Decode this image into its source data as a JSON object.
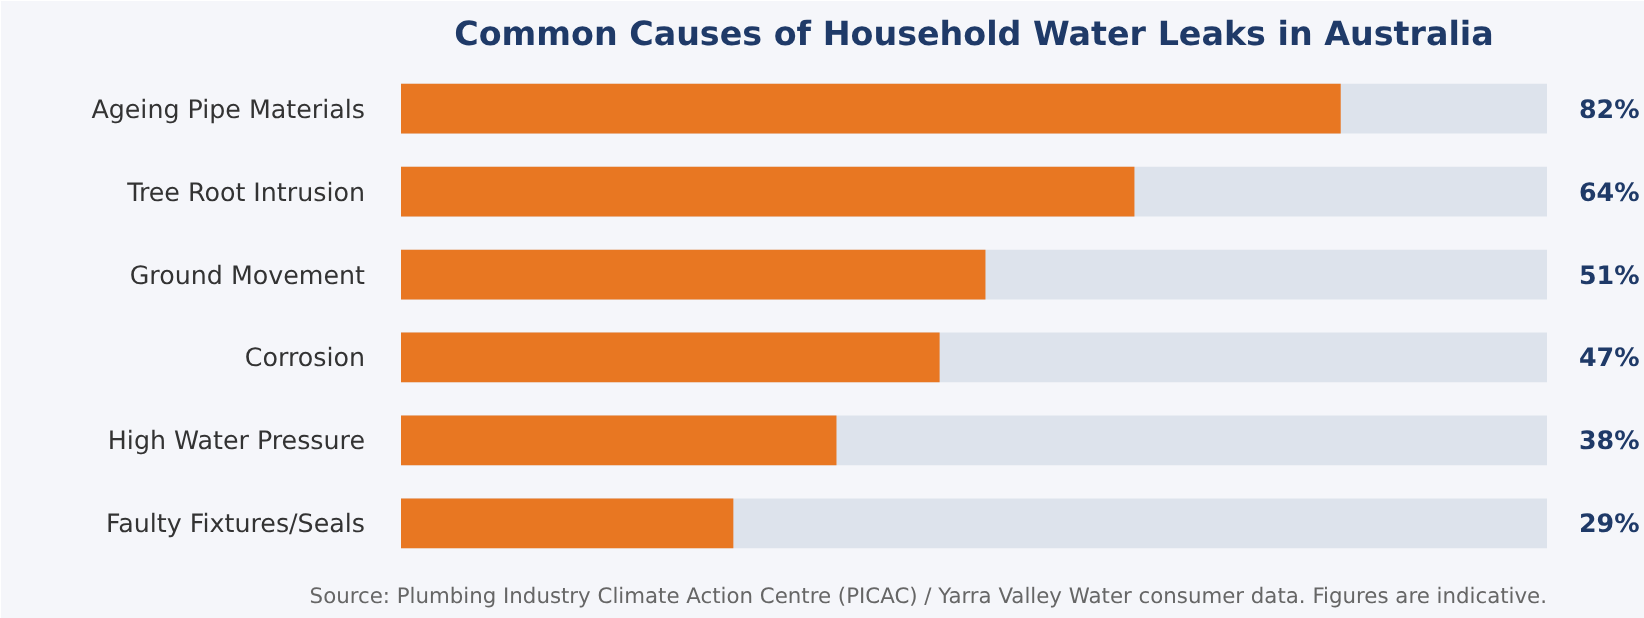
{
  "chart_data": {
    "type": "bar",
    "orientation": "horizontal",
    "title": "Common Causes of Household Water Leaks in Australia",
    "categories": [
      "Ageing Pipe Materials",
      "Tree Root Intrusion",
      "Ground Movement",
      "Corrosion",
      "High Water Pressure",
      "Faulty Fixtures/Seals"
    ],
    "values": [
      82,
      64,
      51,
      47,
      38,
      29
    ],
    "value_labels": [
      "82%",
      "64%",
      "51%",
      "47%",
      "38%",
      "29%"
    ],
    "color": "#e87722",
    "xlim": [
      0,
      100
    ],
    "tick_labels": "y",
    "grid": false,
    "annotations": [
      "Source: Plumbing Industry Climate Action Centre (PICAC) / Yarra Valley Water consumer data. Figures are indicative."
    ]
  }
}
